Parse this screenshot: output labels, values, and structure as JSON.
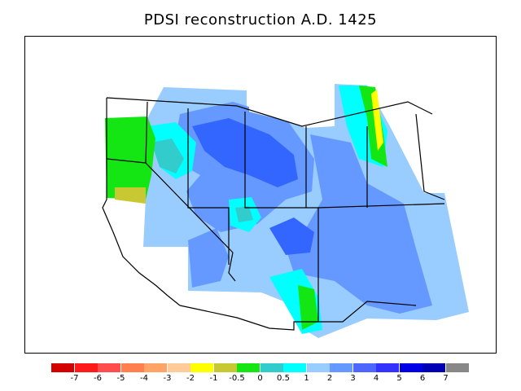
{
  "title": "PDSI reconstruction A.D. 1425",
  "legend": {
    "colors": [
      "#d40000",
      "#ff1a1a",
      "#ff4d4d",
      "#ff7f4d",
      "#ffa366",
      "#ffcc99",
      "#ffff00",
      "#c8c832",
      "#14e614",
      "#33cccc",
      "#00ffff",
      "#99ccff",
      "#6699ff",
      "#4d66ff",
      "#3333ff",
      "#0000e6",
      "#0000b4",
      "#888888"
    ],
    "labels": [
      "-7",
      "-6",
      "-5",
      "-4",
      "-3",
      "-2",
      "-1",
      "-0.5",
      "0",
      "0.5",
      "1",
      "2",
      "3",
      "4",
      "5",
      "6",
      "7"
    ]
  },
  "map": {
    "palette": {
      "deep_blue": "#3366ff",
      "blue": "#6699ff",
      "light_blue": "#99ccff",
      "cyan": "#00ffff",
      "teal": "#33cccc",
      "green": "#14e614",
      "olive": "#c8c832",
      "yellow": "#ffff00",
      "white": "#ffffff",
      "line": "#000000"
    }
  }
}
